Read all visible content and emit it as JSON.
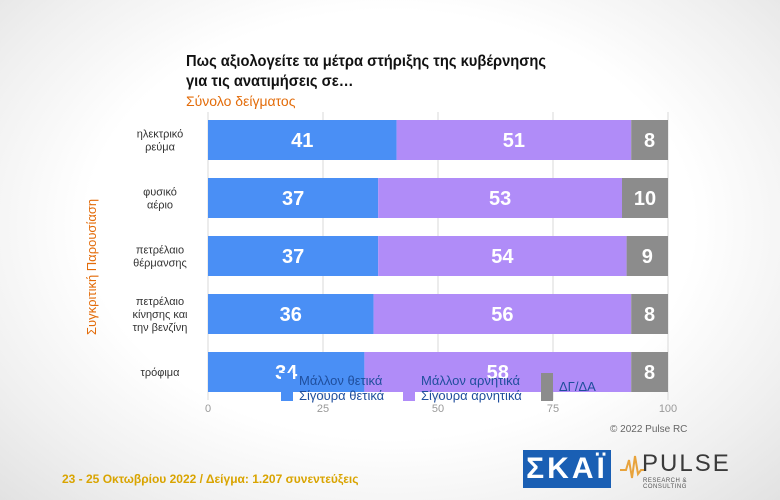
{
  "title_line1": "Πως αξιολογείτε τα μέτρα στήριξης της κυβέρνησης",
  "title_line2": "για τις ανατιμήσεις σε…",
  "subtitle": "Σύνολο δείγματος",
  "vertical_label": "Συγκριτική  Παρουσίαση",
  "legend": [
    {
      "line1": "Μάλλον θετικά",
      "line2": "Σίγουρα θετικά",
      "color": "#4a8ff5"
    },
    {
      "line1": "Μάλλον αρνητικά",
      "line2": "Σίγουρα αρνητικά",
      "color": "#b08cf8"
    },
    {
      "line1": "ΔΓ/ΔΑ",
      "line2": "",
      "color": "#8c8c8c"
    }
  ],
  "copyright": "© 2022 Pulse RC",
  "footer": "23 - 25  Οκτωβρίου  2022  /  Δείγμα:  1.207 συνεντεύξεις",
  "logo_skai": "ΣΚΑΪ",
  "logo_pulse": "PULSE",
  "logo_pulse_tag": "RESEARCH & CONSULTING",
  "chart_data": {
    "type": "bar",
    "orientation": "horizontal",
    "stacked": true,
    "categories": [
      [
        "ηλεκτρικό",
        "ρεύμα"
      ],
      [
        "φυσικό",
        "αέριο"
      ],
      [
        "πετρέλαιο",
        "θέρμανσης"
      ],
      [
        "πετρέλαιο",
        "κίνησης και",
        "την βενζίνη"
      ],
      [
        "τρόφιμα"
      ]
    ],
    "series": [
      {
        "name": "Μάλλον θετικά / Σίγουρα θετικά",
        "color": "#4a8ff5",
        "values": [
          41,
          37,
          37,
          36,
          34
        ]
      },
      {
        "name": "Μάλλον αρνητικά / Σίγουρα αρνητικά",
        "color": "#b08cf8",
        "values": [
          51,
          53,
          54,
          56,
          58
        ]
      },
      {
        "name": "ΔΓ/ΔΑ",
        "color": "#8c8c8c",
        "values": [
          8,
          10,
          9,
          8,
          8
        ]
      }
    ],
    "xlim": [
      0,
      100
    ],
    "xticks": [
      0,
      25,
      50,
      75,
      100
    ],
    "grid": true,
    "legend_position": "bottom"
  }
}
